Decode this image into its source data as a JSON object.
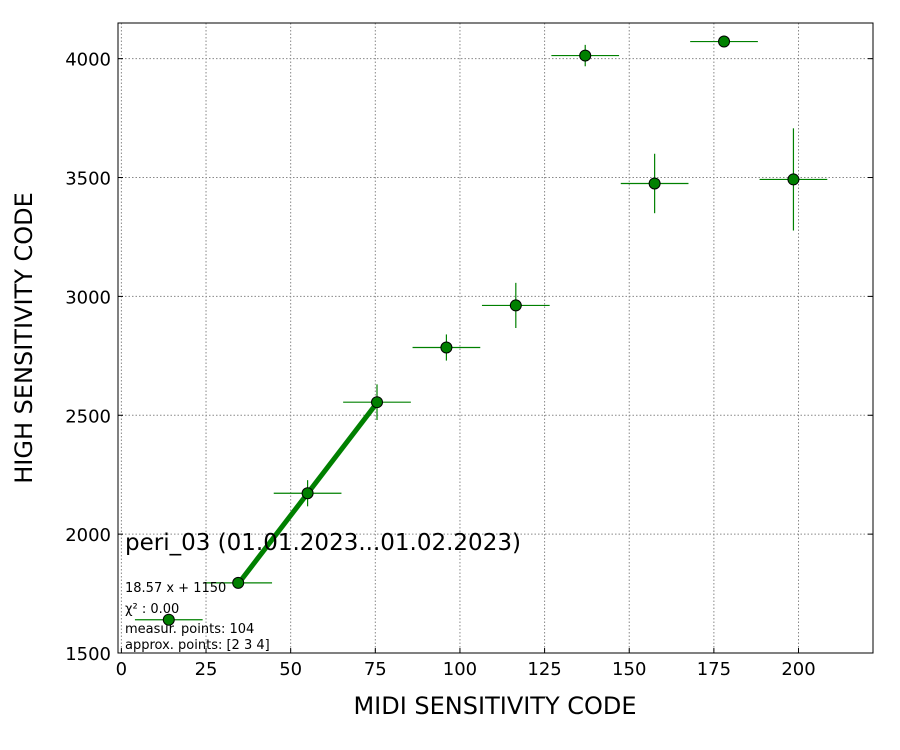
{
  "chart_data": {
    "type": "scatter",
    "title": "peri_03 (01.01.2023...01.02.2023)",
    "xlabel": "MIDI SENSITIVITY CODE",
    "ylabel": "HIGH SENSITIVITY CODE",
    "xlim": [
      -1,
      222
    ],
    "ylim": [
      1500,
      4150
    ],
    "xticks": [
      0,
      25,
      50,
      75,
      100,
      125,
      150,
      175,
      200
    ],
    "yticks": [
      1500,
      2000,
      2500,
      3000,
      3500,
      4000
    ],
    "grid": true,
    "points": [
      {
        "x": 14,
        "y": 1640,
        "xerr": 10,
        "yerr": 10
      },
      {
        "x": 34.5,
        "y": 1795,
        "xerr": 10,
        "yerr": 15
      },
      {
        "x": 55,
        "y": 2172,
        "xerr": 10,
        "yerr": 55
      },
      {
        "x": 75.5,
        "y": 2555,
        "xerr": 10,
        "yerr": 75
      },
      {
        "x": 96,
        "y": 2785,
        "xerr": 10,
        "yerr": 55
      },
      {
        "x": 116.5,
        "y": 2962,
        "xerr": 10,
        "yerr": 95
      },
      {
        "x": 137,
        "y": 4013,
        "xerr": 10,
        "yerr": 45
      },
      {
        "x": 157.5,
        "y": 3475,
        "xerr": 10,
        "yerr": 125
      },
      {
        "x": 178,
        "y": 4072,
        "xerr": 10,
        "yerr": 10
      },
      {
        "x": 198.5,
        "y": 3492,
        "xerr": 10,
        "yerr": 215
      }
    ],
    "fit": {
      "slope": 18.57,
      "intercept": 1150,
      "x_range": [
        34.5,
        75.5
      ]
    },
    "marker_color": "#008000",
    "annotations": [
      "18.57 x + 1150",
      "χ² : 0.00",
      "measur. points: 104",
      "approx. points: [2 3 4]"
    ]
  }
}
